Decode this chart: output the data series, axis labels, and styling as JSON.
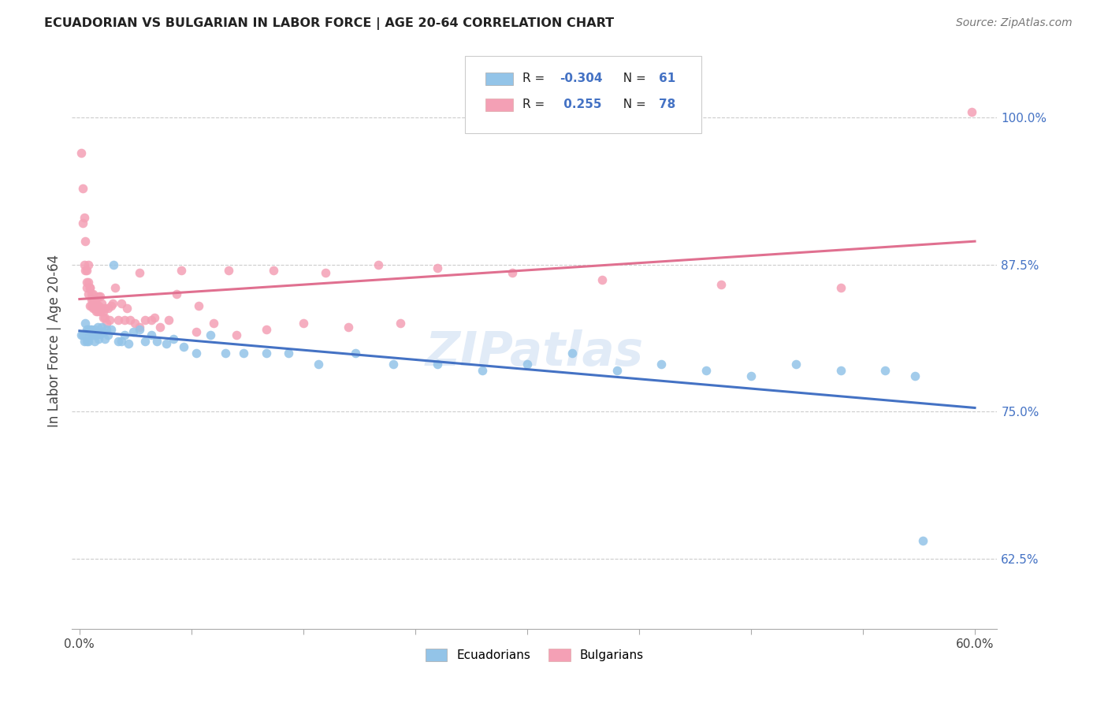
{
  "title": "ECUADORIAN VS BULGARIAN IN LABOR FORCE | AGE 20-64 CORRELATION CHART",
  "source": "Source: ZipAtlas.com",
  "ylabel": "In Labor Force | Age 20-64",
  "xlim": [
    -0.005,
    0.615
  ],
  "ylim": [
    0.565,
    1.055
  ],
  "xticks": [
    0.0,
    0.075,
    0.15,
    0.225,
    0.3,
    0.375,
    0.45,
    0.525,
    0.6
  ],
  "yticks": [
    0.625,
    0.75,
    0.875,
    1.0
  ],
  "ytick_labels": [
    "62.5%",
    "75.0%",
    "87.5%",
    "100.0%"
  ],
  "r_ecu": "-0.304",
  "n_ecu": "61",
  "r_bul": "0.255",
  "n_bul": "78",
  "color_ecu": "#93c4e8",
  "color_bul": "#f4a0b5",
  "trend_ecu": "#4472c4",
  "trend_bul": "#e07090",
  "ecu_x": [
    0.001,
    0.002,
    0.003,
    0.004,
    0.005,
    0.005,
    0.006,
    0.006,
    0.007,
    0.007,
    0.008,
    0.008,
    0.009,
    0.01,
    0.01,
    0.011,
    0.012,
    0.012,
    0.013,
    0.014,
    0.015,
    0.016,
    0.017,
    0.018,
    0.019,
    0.021,
    0.023,
    0.026,
    0.028,
    0.03,
    0.033,
    0.036,
    0.04,
    0.044,
    0.048,
    0.052,
    0.058,
    0.063,
    0.07,
    0.078,
    0.088,
    0.098,
    0.11,
    0.125,
    0.14,
    0.16,
    0.185,
    0.21,
    0.24,
    0.27,
    0.3,
    0.33,
    0.36,
    0.39,
    0.42,
    0.45,
    0.48,
    0.51,
    0.54,
    0.56,
    0.565
  ],
  "ecu_y": [
    0.815,
    0.815,
    0.81,
    0.825,
    0.81,
    0.82,
    0.81,
    0.82,
    0.815,
    0.82,
    0.815,
    0.82,
    0.815,
    0.81,
    0.82,
    0.815,
    0.818,
    0.822,
    0.812,
    0.816,
    0.822,
    0.818,
    0.812,
    0.82,
    0.815,
    0.82,
    0.875,
    0.81,
    0.81,
    0.815,
    0.808,
    0.818,
    0.82,
    0.81,
    0.815,
    0.81,
    0.808,
    0.812,
    0.805,
    0.8,
    0.815,
    0.8,
    0.8,
    0.8,
    0.8,
    0.79,
    0.8,
    0.79,
    0.79,
    0.785,
    0.79,
    0.8,
    0.785,
    0.79,
    0.785,
    0.78,
    0.79,
    0.785,
    0.785,
    0.78,
    0.64
  ],
  "bul_x": [
    0.001,
    0.002,
    0.002,
    0.003,
    0.003,
    0.004,
    0.004,
    0.005,
    0.005,
    0.005,
    0.006,
    0.006,
    0.006,
    0.007,
    0.007,
    0.007,
    0.008,
    0.008,
    0.008,
    0.009,
    0.009,
    0.009,
    0.01,
    0.01,
    0.01,
    0.011,
    0.011,
    0.012,
    0.012,
    0.013,
    0.013,
    0.014,
    0.014,
    0.015,
    0.015,
    0.016,
    0.016,
    0.017,
    0.017,
    0.018,
    0.019,
    0.02,
    0.021,
    0.022,
    0.024,
    0.026,
    0.028,
    0.03,
    0.032,
    0.034,
    0.037,
    0.04,
    0.044,
    0.048,
    0.054,
    0.06,
    0.068,
    0.078,
    0.09,
    0.105,
    0.125,
    0.15,
    0.18,
    0.215,
    0.04,
    0.05,
    0.065,
    0.08,
    0.1,
    0.13,
    0.165,
    0.2,
    0.24,
    0.29,
    0.35,
    0.43,
    0.51,
    0.598
  ],
  "bul_y": [
    0.97,
    0.91,
    0.94,
    0.915,
    0.875,
    0.895,
    0.87,
    0.86,
    0.87,
    0.855,
    0.875,
    0.86,
    0.85,
    0.855,
    0.84,
    0.855,
    0.85,
    0.845,
    0.84,
    0.845,
    0.838,
    0.85,
    0.838,
    0.84,
    0.845,
    0.835,
    0.842,
    0.84,
    0.835,
    0.848,
    0.84,
    0.848,
    0.835,
    0.842,
    0.838,
    0.83,
    0.835,
    0.83,
    0.838,
    0.825,
    0.838,
    0.828,
    0.84,
    0.842,
    0.855,
    0.828,
    0.842,
    0.828,
    0.838,
    0.828,
    0.825,
    0.822,
    0.828,
    0.828,
    0.822,
    0.828,
    0.87,
    0.818,
    0.825,
    0.815,
    0.82,
    0.825,
    0.822,
    0.825,
    0.868,
    0.83,
    0.85,
    0.84,
    0.87,
    0.87,
    0.868,
    0.875,
    0.872,
    0.868,
    0.862,
    0.858,
    0.855,
    1.005
  ]
}
